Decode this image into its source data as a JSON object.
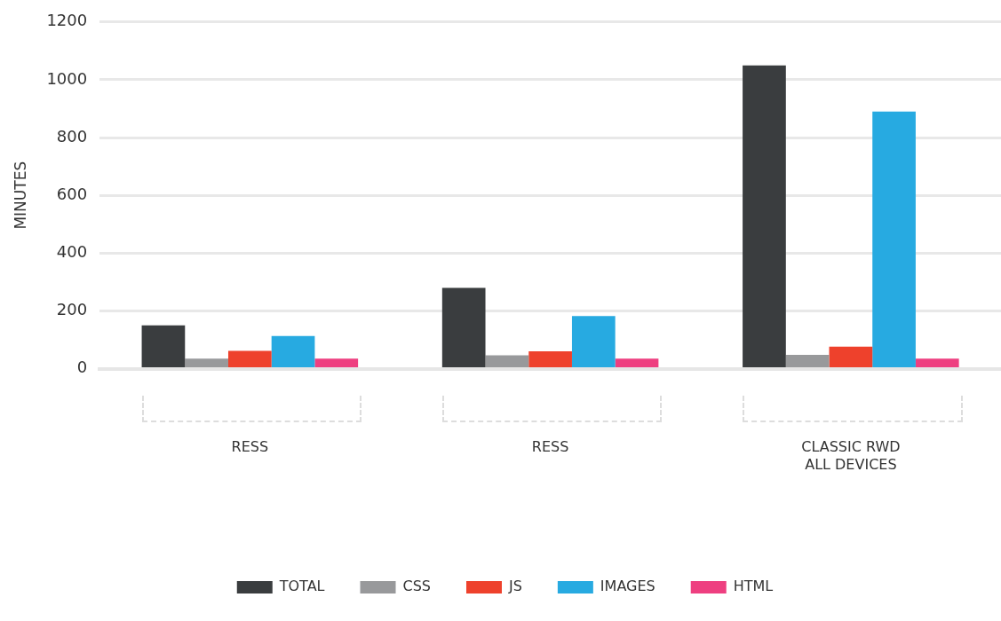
{
  "chart_data": {
    "type": "bar",
    "ylabel": "MINUTES",
    "categories": [
      "RESS",
      "RESS",
      "CLASSIC RWD\nALL DEVICES"
    ],
    "series": [
      {
        "name": "TOTAL",
        "color": "#3a3d3f",
        "values": [
          150,
          280,
          1050
        ]
      },
      {
        "name": "CSS",
        "color": "#98999b",
        "values": [
          35,
          46,
          48
        ]
      },
      {
        "name": "JS",
        "color": "#ee412c",
        "values": [
          62,
          60,
          76
        ]
      },
      {
        "name": "IMAGES",
        "color": "#27aae1",
        "values": [
          113,
          182,
          890
        ]
      },
      {
        "name": "HTML",
        "color": "#ee3f80",
        "values": [
          35,
          35,
          35
        ]
      }
    ],
    "ylim": [
      0,
      1200
    ],
    "yticks": [
      0,
      200,
      400,
      600,
      800,
      1000,
      1200
    ],
    "grid": "y",
    "legend": "bottom"
  }
}
